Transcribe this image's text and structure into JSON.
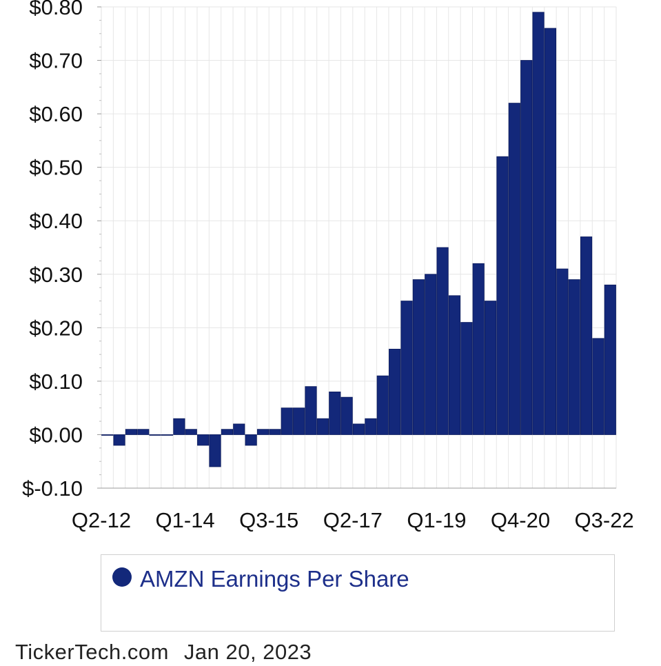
{
  "chart_data": {
    "type": "bar",
    "series": [
      {
        "name": "AMZN Earnings Per Share",
        "color": "#13287a",
        "values": [
          0.0,
          -0.02,
          0.01,
          0.01,
          0.0,
          0.0,
          0.03,
          0.01,
          -0.02,
          -0.06,
          0.01,
          0.02,
          -0.02,
          0.01,
          0.01,
          0.05,
          0.05,
          0.09,
          0.03,
          0.08,
          0.07,
          0.02,
          0.03,
          0.11,
          0.16,
          0.25,
          0.29,
          0.3,
          0.35,
          0.26,
          0.21,
          0.32,
          0.25,
          0.52,
          0.62,
          0.7,
          0.79,
          0.76,
          0.31,
          0.29,
          0.37,
          0.18,
          0.28
        ]
      }
    ],
    "xtick_labels": [
      "Q2-12",
      "Q1-14",
      "Q3-15",
      "Q2-17",
      "Q1-19",
      "Q4-20",
      "Q3-22"
    ],
    "ytick_labels": [
      "$-0.10",
      "$0.00",
      "$0.10",
      "$0.20",
      "$0.30",
      "$0.40",
      "$0.50",
      "$0.60",
      "$0.70",
      "$0.80"
    ],
    "ylim": [
      -0.1,
      0.8
    ],
    "grid": true,
    "legend_position": "bottom"
  },
  "legend": {
    "label": "AMZN Earnings Per Share"
  },
  "footer": {
    "source": "TickerTech.com",
    "date": "Jan 20, 2023"
  }
}
